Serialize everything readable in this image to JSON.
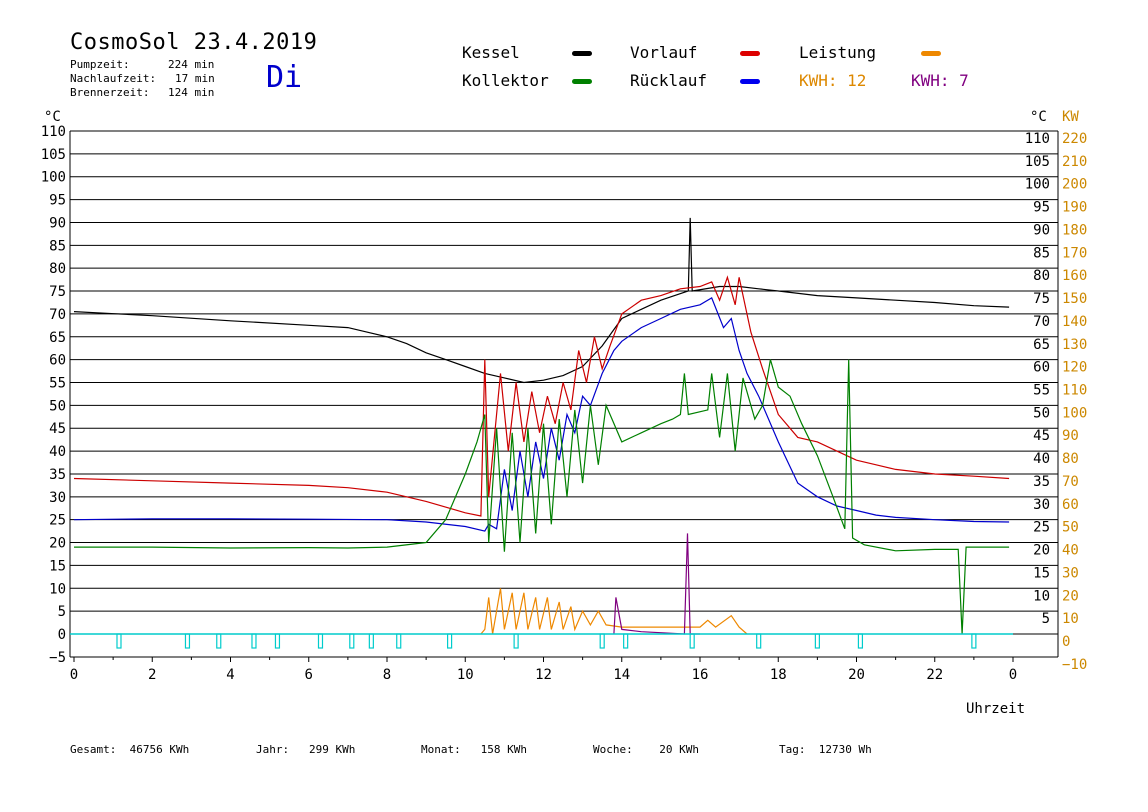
{
  "header": {
    "title": "CosmoSol 23.4.2019",
    "day": "Di",
    "pump_label": "Pumpzeit:",
    "pump_value": "224 min",
    "nachlauf_label": "Nachlaufzeit:",
    "nachlauf_value": "17 min",
    "brenner_label": "Brennerzeit:",
    "brenner_value": "124 min"
  },
  "legend": {
    "kessel": "Kessel",
    "kollektor": "Kollektor",
    "vorlauf": "Vorlauf",
    "ruecklauf": "Rücklauf",
    "leistung": "Leistung",
    "kwh1": "KWH: 12",
    "kwh2": "KWH: 7"
  },
  "colors": {
    "kessel": "#000000",
    "kollektor": "#008000",
    "vorlauf": "#cc0000",
    "ruecklauf": "#0000cc",
    "leistung": "#ee8800",
    "purple": "#800080",
    "cyan": "#00cccc",
    "kw_axis": "#cc8800"
  },
  "footer": {
    "gesamt": "Gesamt:  46756 KWh",
    "jahr": "Jahr:   299 KWh",
    "monat": "Monat:   158 KWh",
    "woche": "Woche:    20 KWh",
    "tag": "Tag:  12730 Wh"
  },
  "chart_data": {
    "type": "line",
    "xlabel": "Uhrzeit",
    "ylabel_left": "°C",
    "ylabel_right_1": "°C",
    "ylabel_right_2": "KW",
    "xlim": [
      0,
      24
    ],
    "ylim": [
      -5,
      110
    ],
    "y_ticks_left": [
      "110",
      "105",
      "100",
      "95",
      "90",
      "85",
      "80",
      "75",
      "70",
      "65",
      "60",
      "55",
      "50",
      "45",
      "40",
      "35",
      "30",
      "25",
      "20",
      "15",
      "10",
      "5",
      "0",
      "−5"
    ],
    "y_ticks_right_c": [
      "110",
      "105",
      "100",
      "95",
      "90",
      "85",
      "80",
      "75",
      "70",
      "65",
      "60",
      "55",
      "50",
      "45",
      "40",
      "35",
      "30",
      "25",
      "20",
      "15",
      "10",
      "5"
    ],
    "y_ticks_right_kw": [
      "220",
      "210",
      "200",
      "190",
      "180",
      "170",
      "160",
      "150",
      "140",
      "130",
      "120",
      "110",
      "100",
      "90",
      "80",
      "70",
      "60",
      "50",
      "40",
      "30",
      "20",
      "10",
      "0",
      "−10"
    ],
    "x_ticks": [
      "0",
      "2",
      "4",
      "6",
      "8",
      "10",
      "12",
      "14",
      "16",
      "18",
      "20",
      "22",
      "0"
    ],
    "series": [
      {
        "name": "Kessel",
        "color": "#000000",
        "points": [
          [
            0,
            70.5
          ],
          [
            2,
            69.6
          ],
          [
            4,
            68.5
          ],
          [
            6,
            67.5
          ],
          [
            7,
            67
          ],
          [
            7.5,
            66
          ],
          [
            8,
            65
          ],
          [
            8.5,
            63.5
          ],
          [
            9,
            61.5
          ],
          [
            9.5,
            60
          ],
          [
            10,
            58.5
          ],
          [
            10.5,
            57
          ],
          [
            11,
            56
          ],
          [
            11.5,
            55
          ],
          [
            12,
            55.5
          ],
          [
            12.5,
            56.5
          ],
          [
            13,
            58.5
          ],
          [
            13.5,
            63
          ],
          [
            14,
            69
          ],
          [
            14.5,
            71
          ],
          [
            15,
            73
          ],
          [
            15.7,
            75
          ],
          [
            15.75,
            91
          ],
          [
            15.8,
            75
          ],
          [
            16.5,
            76
          ],
          [
            17,
            76
          ],
          [
            17.5,
            75.5
          ],
          [
            18,
            75
          ],
          [
            19,
            74
          ],
          [
            20,
            73.5
          ],
          [
            21,
            73
          ],
          [
            22,
            72.5
          ],
          [
            23,
            71.8
          ],
          [
            23.9,
            71.5
          ]
        ]
      },
      {
        "name": "Vorlauf",
        "color": "#cc0000",
        "points": [
          [
            0,
            34
          ],
          [
            2,
            33.5
          ],
          [
            4,
            33
          ],
          [
            6,
            32.5
          ],
          [
            7,
            32
          ],
          [
            8,
            31
          ],
          [
            9,
            29
          ],
          [
            10,
            26.5
          ],
          [
            10.4,
            25.8
          ],
          [
            10.5,
            60
          ],
          [
            10.6,
            30
          ],
          [
            10.9,
            57
          ],
          [
            11.1,
            40
          ],
          [
            11.3,
            55
          ],
          [
            11.5,
            42
          ],
          [
            11.7,
            53
          ],
          [
            11.9,
            44
          ],
          [
            12.1,
            52
          ],
          [
            12.3,
            46
          ],
          [
            12.5,
            55
          ],
          [
            12.7,
            49
          ],
          [
            12.9,
            62
          ],
          [
            13.1,
            55
          ],
          [
            13.3,
            65
          ],
          [
            13.5,
            58
          ],
          [
            13.7,
            63
          ],
          [
            14,
            70
          ],
          [
            14.5,
            73
          ],
          [
            15,
            74
          ],
          [
            15.5,
            75.5
          ],
          [
            16,
            76
          ],
          [
            16.3,
            77
          ],
          [
            16.5,
            73
          ],
          [
            16.7,
            78
          ],
          [
            16.9,
            72
          ],
          [
            17,
            78
          ],
          [
            17.3,
            66
          ],
          [
            17.6,
            58
          ],
          [
            18,
            48
          ],
          [
            18.5,
            43
          ],
          [
            19,
            42
          ],
          [
            19.5,
            40
          ],
          [
            20,
            38
          ],
          [
            20.5,
            37
          ],
          [
            21,
            36
          ],
          [
            22,
            35
          ],
          [
            23,
            34.5
          ],
          [
            23.9,
            34
          ]
        ]
      },
      {
        "name": "Rücklauf",
        "color": "#0000cc",
        "points": [
          [
            0,
            25
          ],
          [
            2,
            25.2
          ],
          [
            4,
            25.2
          ],
          [
            6,
            25.1
          ],
          [
            8,
            25
          ],
          [
            9,
            24.5
          ],
          [
            10,
            23.5
          ],
          [
            10.5,
            22.5
          ],
          [
            10.6,
            24
          ],
          [
            10.8,
            23
          ],
          [
            11,
            36
          ],
          [
            11.2,
            27
          ],
          [
            11.4,
            40
          ],
          [
            11.6,
            30
          ],
          [
            11.8,
            42
          ],
          [
            12,
            34
          ],
          [
            12.2,
            45
          ],
          [
            12.4,
            38
          ],
          [
            12.6,
            48
          ],
          [
            12.8,
            44
          ],
          [
            13,
            52
          ],
          [
            13.2,
            50
          ],
          [
            13.5,
            57
          ],
          [
            13.8,
            62
          ],
          [
            14,
            64
          ],
          [
            14.5,
            67
          ],
          [
            15,
            69
          ],
          [
            15.5,
            71
          ],
          [
            16,
            72
          ],
          [
            16.3,
            73.5
          ],
          [
            16.6,
            67
          ],
          [
            16.8,
            69
          ],
          [
            17,
            62
          ],
          [
            17.2,
            57
          ],
          [
            17.5,
            52
          ],
          [
            18,
            42
          ],
          [
            18.5,
            33
          ],
          [
            19,
            30
          ],
          [
            19.5,
            28
          ],
          [
            20,
            27
          ],
          [
            20.5,
            26
          ],
          [
            21,
            25.5
          ],
          [
            22,
            25
          ],
          [
            23,
            24.6
          ],
          [
            23.9,
            24.5
          ]
        ]
      },
      {
        "name": "Kollektor",
        "color": "#008000",
        "points": [
          [
            0,
            19
          ],
          [
            2,
            19
          ],
          [
            4,
            18.8
          ],
          [
            6,
            18.9
          ],
          [
            7,
            18.8
          ],
          [
            8,
            19
          ],
          [
            9,
            20
          ],
          [
            9.5,
            25
          ],
          [
            10,
            35
          ],
          [
            10.3,
            42
          ],
          [
            10.5,
            48
          ],
          [
            10.6,
            20
          ],
          [
            10.8,
            45
          ],
          [
            11,
            18
          ],
          [
            11.2,
            44
          ],
          [
            11.4,
            20
          ],
          [
            11.6,
            45
          ],
          [
            11.8,
            22
          ],
          [
            12,
            46
          ],
          [
            12.2,
            24
          ],
          [
            12.4,
            47
          ],
          [
            12.6,
            30
          ],
          [
            12.8,
            49
          ],
          [
            13,
            33
          ],
          [
            13.2,
            50
          ],
          [
            13.4,
            37
          ],
          [
            13.6,
            50
          ],
          [
            14,
            42
          ],
          [
            14.5,
            44
          ],
          [
            15,
            46
          ],
          [
            15.3,
            47
          ],
          [
            15.5,
            48
          ],
          [
            15.6,
            57
          ],
          [
            15.7,
            48
          ],
          [
            16.2,
            49
          ],
          [
            16.3,
            57
          ],
          [
            16.5,
            43
          ],
          [
            16.7,
            57
          ],
          [
            16.9,
            40
          ],
          [
            17.1,
            56
          ],
          [
            17.4,
            47
          ],
          [
            17.6,
            50
          ],
          [
            17.8,
            60
          ],
          [
            18,
            54
          ],
          [
            18.3,
            52
          ],
          [
            18.6,
            46
          ],
          [
            19,
            39
          ],
          [
            19.4,
            30
          ],
          [
            19.7,
            23
          ],
          [
            19.8,
            60
          ],
          [
            19.9,
            21
          ],
          [
            20.2,
            19.5
          ],
          [
            21,
            18.2
          ],
          [
            22,
            18.5
          ],
          [
            22.6,
            18.5
          ],
          [
            22.7,
            0
          ],
          [
            22.8,
            19
          ],
          [
            23.9,
            19
          ]
        ]
      },
      {
        "name": "Leistung",
        "color": "#ee8800",
        "points": [
          [
            10.4,
            0
          ],
          [
            10.5,
            1
          ],
          [
            10.6,
            8
          ],
          [
            10.7,
            0
          ],
          [
            10.9,
            10
          ],
          [
            11.0,
            1
          ],
          [
            11.2,
            9
          ],
          [
            11.3,
            1
          ],
          [
            11.5,
            9
          ],
          [
            11.6,
            1
          ],
          [
            11.8,
            8
          ],
          [
            11.9,
            1
          ],
          [
            12.1,
            8
          ],
          [
            12.2,
            1
          ],
          [
            12.4,
            7
          ],
          [
            12.5,
            1
          ],
          [
            12.7,
            6
          ],
          [
            12.8,
            1
          ],
          [
            13,
            5
          ],
          [
            13.2,
            2
          ],
          [
            13.4,
            5
          ],
          [
            13.6,
            2
          ],
          [
            14,
            1.5
          ],
          [
            15,
            1.5
          ],
          [
            16,
            1.5
          ],
          [
            16.2,
            3
          ],
          [
            16.4,
            1.5
          ],
          [
            16.8,
            4
          ],
          [
            17,
            1.5
          ],
          [
            17.2,
            0
          ]
        ]
      },
      {
        "name": "Purple",
        "color": "#800080",
        "points": [
          [
            13.8,
            0
          ],
          [
            13.85,
            8
          ],
          [
            14,
            1
          ],
          [
            14.5,
            0.5
          ],
          [
            15.6,
            0
          ],
          [
            15.68,
            22
          ],
          [
            15.75,
            0
          ],
          [
            16,
            0
          ]
        ]
      }
    ]
  }
}
